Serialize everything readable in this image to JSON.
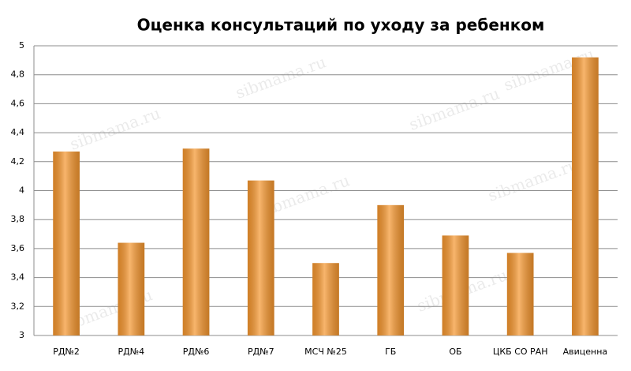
{
  "chart_data": {
    "type": "bar",
    "title": "Оценка консультаций по уходу за ребенком",
    "watermark": "sibmama.ru",
    "categories": [
      "РД№2",
      "РД№4",
      "РД№6",
      "РД№7",
      "МСЧ №25",
      "ГБ",
      "ОБ",
      "ЦКБ СО РАН",
      "Авиценна"
    ],
    "values": [
      4.27,
      3.64,
      4.29,
      4.07,
      3.5,
      3.9,
      3.69,
      3.57,
      4.92
    ],
    "color": "#f5962e",
    "ylim": [
      3,
      5
    ],
    "yticks": [
      3,
      {
        "value": 3.2,
        "label": "3,2"
      },
      {
        "value": 3.4,
        "label": "3,4"
      },
      {
        "value": 3.6,
        "label": "3,6"
      },
      {
        "value": 3.8,
        "label": "3,8"
      },
      4,
      {
        "value": 4.2,
        "label": "4,2"
      },
      {
        "value": 4.4,
        "label": "4,4"
      },
      {
        "value": 4.6,
        "label": "4,6"
      },
      {
        "value": 4.8,
        "label": "4,8"
      },
      5
    ],
    "grid": true
  }
}
